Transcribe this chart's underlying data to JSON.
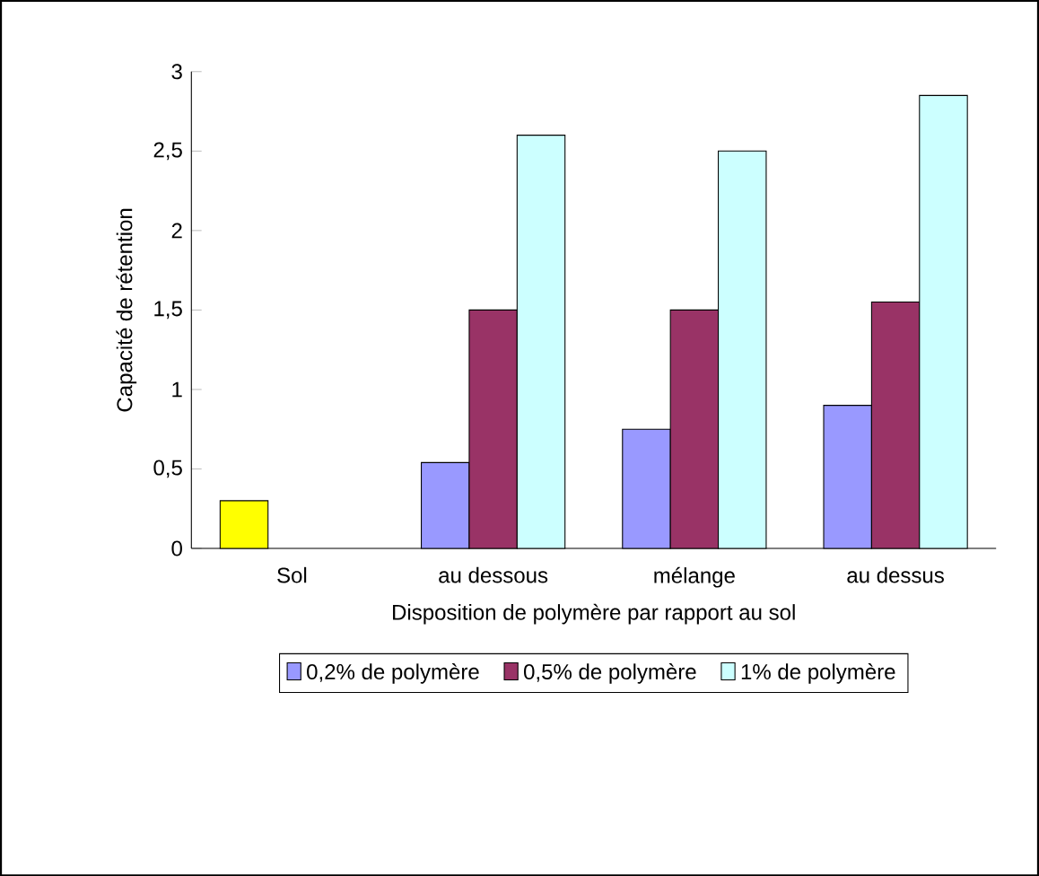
{
  "chart_data": {
    "type": "bar",
    "xlabel": "Disposition de polymère par rapport au sol",
    "ylabel": "Capacité de rétention",
    "categories": [
      "Sol",
      "au dessous",
      "mélange",
      "au dessus"
    ],
    "series": [
      {
        "name": "0,2% de polymère",
        "color": "#9999ff",
        "colors": [
          "#ffff00",
          "#9999ff",
          "#9999ff",
          "#9999ff"
        ],
        "values": [
          0.3,
          0.54,
          0.75,
          0.9
        ]
      },
      {
        "name": "0,5% de polymère",
        "color": "#993366",
        "values": [
          null,
          1.5,
          1.5,
          1.55
        ]
      },
      {
        "name": "1% de polymère",
        "color": "#ccffff",
        "values": [
          null,
          2.6,
          2.5,
          2.85
        ]
      }
    ],
    "ylim": [
      0,
      3
    ],
    "yticks": [
      0,
      {
        "value": 0.5,
        "label": "0,5"
      },
      1,
      {
        "value": 1.5,
        "label": "1,5"
      },
      2,
      {
        "value": 2.5,
        "label": "2,5"
      },
      3
    ],
    "legend": "bottom"
  }
}
